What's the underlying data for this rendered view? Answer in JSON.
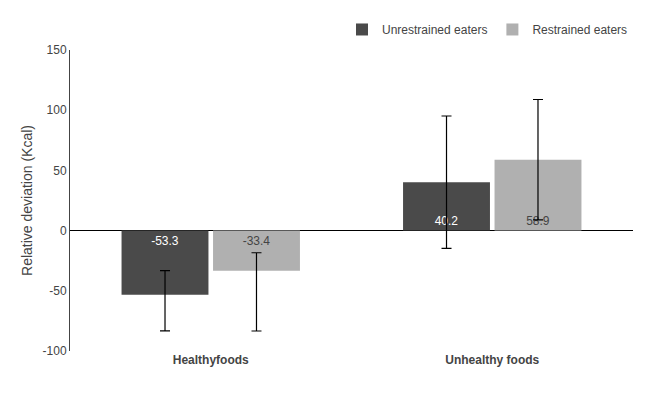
{
  "chart_data": {
    "type": "bar",
    "categories": [
      "Healthyfoods",
      "Unhealthy foods"
    ],
    "series": [
      {
        "name": "Unrestrained eaters",
        "color": "#4a4a4a",
        "values": [
          -53.3,
          40.2
        ],
        "errors_plus": [
          20,
          55
        ],
        "errors_minus": [
          30,
          55
        ]
      },
      {
        "name": "Restrained eaters",
        "color": "#b0b0b0",
        "values": [
          -33.4,
          58.9
        ],
        "errors_plus": [
          15,
          50
        ],
        "errors_minus": [
          50,
          50
        ]
      }
    ],
    "ylabel": "Relative deviation (Kcal)",
    "ylim": [
      -100,
      150
    ],
    "yticks": [
      -100,
      -50,
      0,
      50,
      100,
      150
    ],
    "grid": false,
    "legend": "upper right",
    "data_labels": true
  }
}
